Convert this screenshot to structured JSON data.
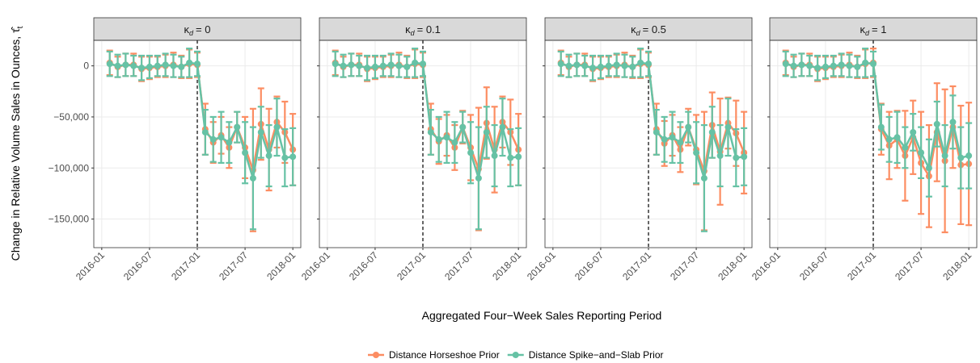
{
  "figure": {
    "x_label": "Aggregated Four−Week Sales Reporting Period",
    "y_label": "Change in Relative Volume Sales in Ounces, τ̂",
    "y_label_sub": "t",
    "strip_symbol": "κ",
    "strip_subscript": "d"
  },
  "chart_data": [
    {
      "type": "line",
      "title": "= 0",
      "x": [
        "2016-02",
        "2016-03",
        "2016-04",
        "2016-05",
        "2016-06",
        "2016-07",
        "2016-08",
        "2016-09",
        "2016-10",
        "2016-11",
        "2016-12",
        "2017-01",
        "2017-02",
        "2017-03",
        "2017-04",
        "2017-05",
        "2017-06",
        "2017-07",
        "2017-08",
        "2017-09",
        "2017-10",
        "2017-11",
        "2017-12",
        "2018-01"
      ],
      "series": [
        {
          "name": "Distance Horseshoe Prior",
          "color": "#fc8d62",
          "values": [
            3000,
            -1000,
            1000,
            1000,
            -3000,
            -2000,
            -1000,
            0,
            1000,
            -1000,
            2000,
            1000,
            -62000,
            -75000,
            -68000,
            -80000,
            -60000,
            -80000,
            -102000,
            -57000,
            -82000,
            -55000,
            -65000,
            -82000
          ],
          "errors": [
            12000,
            10000,
            11000,
            11000,
            12000,
            11000,
            10000,
            11000,
            12000,
            11000,
            14000,
            12000,
            25000,
            20000,
            18000,
            20000,
            15000,
            30000,
            60000,
            35000,
            40000,
            25000,
            30000,
            35000
          ]
        },
        {
          "name": "Distance Spike−and−Slab Prior",
          "color": "#66c2a5",
          "values": [
            2000,
            0,
            1000,
            0,
            -2000,
            -1000,
            0,
            1000,
            0,
            -1000,
            3000,
            2000,
            -65000,
            -72000,
            -70000,
            -75000,
            -60000,
            -85000,
            -110000,
            -65000,
            -88000,
            -60000,
            -90000,
            -89000
          ],
          "errors": [
            12000,
            11000,
            11000,
            10000,
            12000,
            11000,
            10000,
            11000,
            11000,
            10000,
            14000,
            12000,
            22000,
            22000,
            25000,
            20000,
            15000,
            30000,
            50000,
            25000,
            30000,
            28000,
            28000,
            28000
          ]
        }
      ],
      "xlim": [
        "2015-12",
        "2018-02"
      ],
      "xticks": [
        "2016-01",
        "2016-07",
        "2017-01",
        "2017-07",
        "2018-01"
      ],
      "vline": "2017-01",
      "ylim": [
        -178000,
        25000
      ],
      "yticks": [
        {
          "value": -150000,
          "label": "−150,000"
        },
        {
          "value": -100000,
          "label": "−100,000"
        },
        {
          "value": -50000,
          "label": "−50,000"
        },
        0
      ],
      "grid": true
    },
    {
      "type": "line",
      "title": "= 0.1",
      "x": [
        "2016-02",
        "2016-03",
        "2016-04",
        "2016-05",
        "2016-06",
        "2016-07",
        "2016-08",
        "2016-09",
        "2016-10",
        "2016-11",
        "2016-12",
        "2017-01",
        "2017-02",
        "2017-03",
        "2017-04",
        "2017-05",
        "2017-06",
        "2017-07",
        "2017-08",
        "2017-09",
        "2017-10",
        "2017-11",
        "2017-12",
        "2018-01"
      ],
      "series": [
        {
          "name": "Distance Horseshoe Prior",
          "color": "#fc8d62",
          "values": [
            3000,
            -1000,
            1000,
            1000,
            -3000,
            -2000,
            -1000,
            0,
            1000,
            -1000,
            2000,
            1000,
            -62000,
            -74000,
            -68000,
            -80000,
            -60000,
            -80000,
            -101000,
            -56000,
            -82000,
            -55000,
            -65000,
            -82000
          ],
          "errors": [
            12000,
            10000,
            11000,
            11000,
            12000,
            11000,
            10000,
            11000,
            12000,
            11000,
            14000,
            12000,
            25000,
            22000,
            20000,
            22000,
            16000,
            32000,
            60000,
            35000,
            42000,
            25000,
            32000,
            35000
          ]
        },
        {
          "name": "Distance Spike−and−Slab Prior",
          "color": "#66c2a5",
          "values": [
            2000,
            0,
            1000,
            0,
            -2000,
            -1000,
            0,
            1000,
            0,
            -1000,
            3000,
            2000,
            -65000,
            -72000,
            -70000,
            -75000,
            -60000,
            -85000,
            -110000,
            -65000,
            -88000,
            -60000,
            -90000,
            -89000
          ],
          "errors": [
            12000,
            11000,
            11000,
            10000,
            12000,
            11000,
            10000,
            11000,
            11000,
            10000,
            14000,
            12000,
            22000,
            22000,
            25000,
            20000,
            15000,
            30000,
            50000,
            25000,
            30000,
            28000,
            28000,
            28000
          ]
        }
      ],
      "xlim": [
        "2015-12",
        "2018-02"
      ],
      "xticks": [
        "2016-01",
        "2016-07",
        "2017-01",
        "2017-07",
        "2018-01"
      ],
      "vline": "2017-01",
      "ylim": [
        -178000,
        25000
      ],
      "yticks": [
        {
          "value": -150000,
          "label": "−150,000"
        },
        {
          "value": -100000,
          "label": "−100,000"
        },
        {
          "value": -50000,
          "label": "−50,000"
        },
        0
      ],
      "grid": true
    },
    {
      "type": "line",
      "title": "= 0.5",
      "x": [
        "2016-02",
        "2016-03",
        "2016-04",
        "2016-05",
        "2016-06",
        "2016-07",
        "2016-08",
        "2016-09",
        "2016-10",
        "2016-11",
        "2016-12",
        "2017-01",
        "2017-02",
        "2017-03",
        "2017-04",
        "2017-05",
        "2017-06",
        "2017-07",
        "2017-08",
        "2017-09",
        "2017-10",
        "2017-11",
        "2017-12",
        "2018-01"
      ],
      "series": [
        {
          "name": "Distance Horseshoe Prior",
          "color": "#fc8d62",
          "values": [
            3000,
            -1000,
            1000,
            1000,
            -3000,
            -2000,
            -1000,
            0,
            1000,
            -1000,
            2000,
            1000,
            -62000,
            -76000,
            -68000,
            -82000,
            -60000,
            -82000,
            -103000,
            -58000,
            -84000,
            -56000,
            -66000,
            -85000
          ],
          "errors": [
            12000,
            10000,
            11000,
            11000,
            12000,
            11000,
            10000,
            11000,
            12000,
            11000,
            14000,
            12000,
            25000,
            22000,
            20000,
            22000,
            18000,
            34000,
            58000,
            32000,
            52000,
            25000,
            32000,
            40000
          ]
        },
        {
          "name": "Distance Spike−and−Slab Prior",
          "color": "#66c2a5",
          "values": [
            2000,
            0,
            1000,
            0,
            -2000,
            -1000,
            0,
            1000,
            0,
            -1000,
            3000,
            2000,
            -65000,
            -72000,
            -70000,
            -75000,
            -60000,
            -85000,
            -110000,
            -65000,
            -88000,
            -60000,
            -90000,
            -89000
          ],
          "errors": [
            12000,
            11000,
            11000,
            10000,
            12000,
            11000,
            10000,
            11000,
            11000,
            10000,
            14000,
            12000,
            22000,
            22000,
            25000,
            20000,
            15000,
            30000,
            52000,
            25000,
            30000,
            28000,
            28000,
            28000
          ]
        }
      ],
      "xlim": [
        "2015-12",
        "2018-02"
      ],
      "xticks": [
        "2016-01",
        "2016-07",
        "2017-01",
        "2017-07",
        "2018-01"
      ],
      "vline": "2017-01",
      "ylim": [
        -178000,
        25000
      ],
      "yticks": [
        {
          "value": -150000,
          "label": "−150,000"
        },
        {
          "value": -100000,
          "label": "−100,000"
        },
        {
          "value": -50000,
          "label": "−50,000"
        },
        0
      ],
      "grid": true
    },
    {
      "type": "line",
      "title": "= 1",
      "x": [
        "2016-02",
        "2016-03",
        "2016-04",
        "2016-05",
        "2016-06",
        "2016-07",
        "2016-08",
        "2016-09",
        "2016-10",
        "2016-11",
        "2016-12",
        "2017-01",
        "2017-02",
        "2017-03",
        "2017-04",
        "2017-05",
        "2017-06",
        "2017-07",
        "2017-08",
        "2017-09",
        "2017-10",
        "2017-11",
        "2017-12",
        "2018-01"
      ],
      "series": [
        {
          "name": "Distance Horseshoe Prior",
          "color": "#fc8d62",
          "values": [
            3000,
            -1000,
            1000,
            1000,
            -3000,
            -2000,
            -1000,
            0,
            1000,
            -1000,
            2000,
            3000,
            -62000,
            -78000,
            -72000,
            -88000,
            -70000,
            -95000,
            -108000,
            -65000,
            -93000,
            -60000,
            -97000,
            -96000
          ],
          "errors": [
            12000,
            10000,
            11000,
            11000,
            12000,
            11000,
            10000,
            11000,
            12000,
            11000,
            14000,
            14000,
            25000,
            33000,
            28000,
            44000,
            36000,
            50000,
            50000,
            48000,
            70000,
            40000,
            58000,
            60000
          ]
        },
        {
          "name": "Distance Spike−and−Slab Prior",
          "color": "#66c2a5",
          "values": [
            2000,
            0,
            1000,
            0,
            -2000,
            -1000,
            0,
            1000,
            0,
            -1000,
            3000,
            2000,
            -60000,
            -72000,
            -70000,
            -80000,
            -65000,
            -85000,
            -100000,
            -57000,
            -88000,
            -55000,
            -90000,
            -88000
          ],
          "errors": [
            12000,
            11000,
            11000,
            10000,
            12000,
            11000,
            10000,
            11000,
            11000,
            10000,
            14000,
            12000,
            22000,
            22000,
            25000,
            20000,
            18000,
            25000,
            28000,
            22000,
            30000,
            26000,
            30000,
            32000
          ]
        }
      ],
      "xlim": [
        "2015-12",
        "2018-02"
      ],
      "xticks": [
        "2016-01",
        "2016-07",
        "2017-01",
        "2017-07",
        "2018-01"
      ],
      "vline": "2017-01",
      "ylim": [
        -178000,
        25000
      ],
      "yticks": [
        {
          "value": -150000,
          "label": "−150,000"
        },
        {
          "value": -100000,
          "label": "−100,000"
        },
        {
          "value": -50000,
          "label": "−50,000"
        },
        0
      ],
      "grid": true
    }
  ]
}
